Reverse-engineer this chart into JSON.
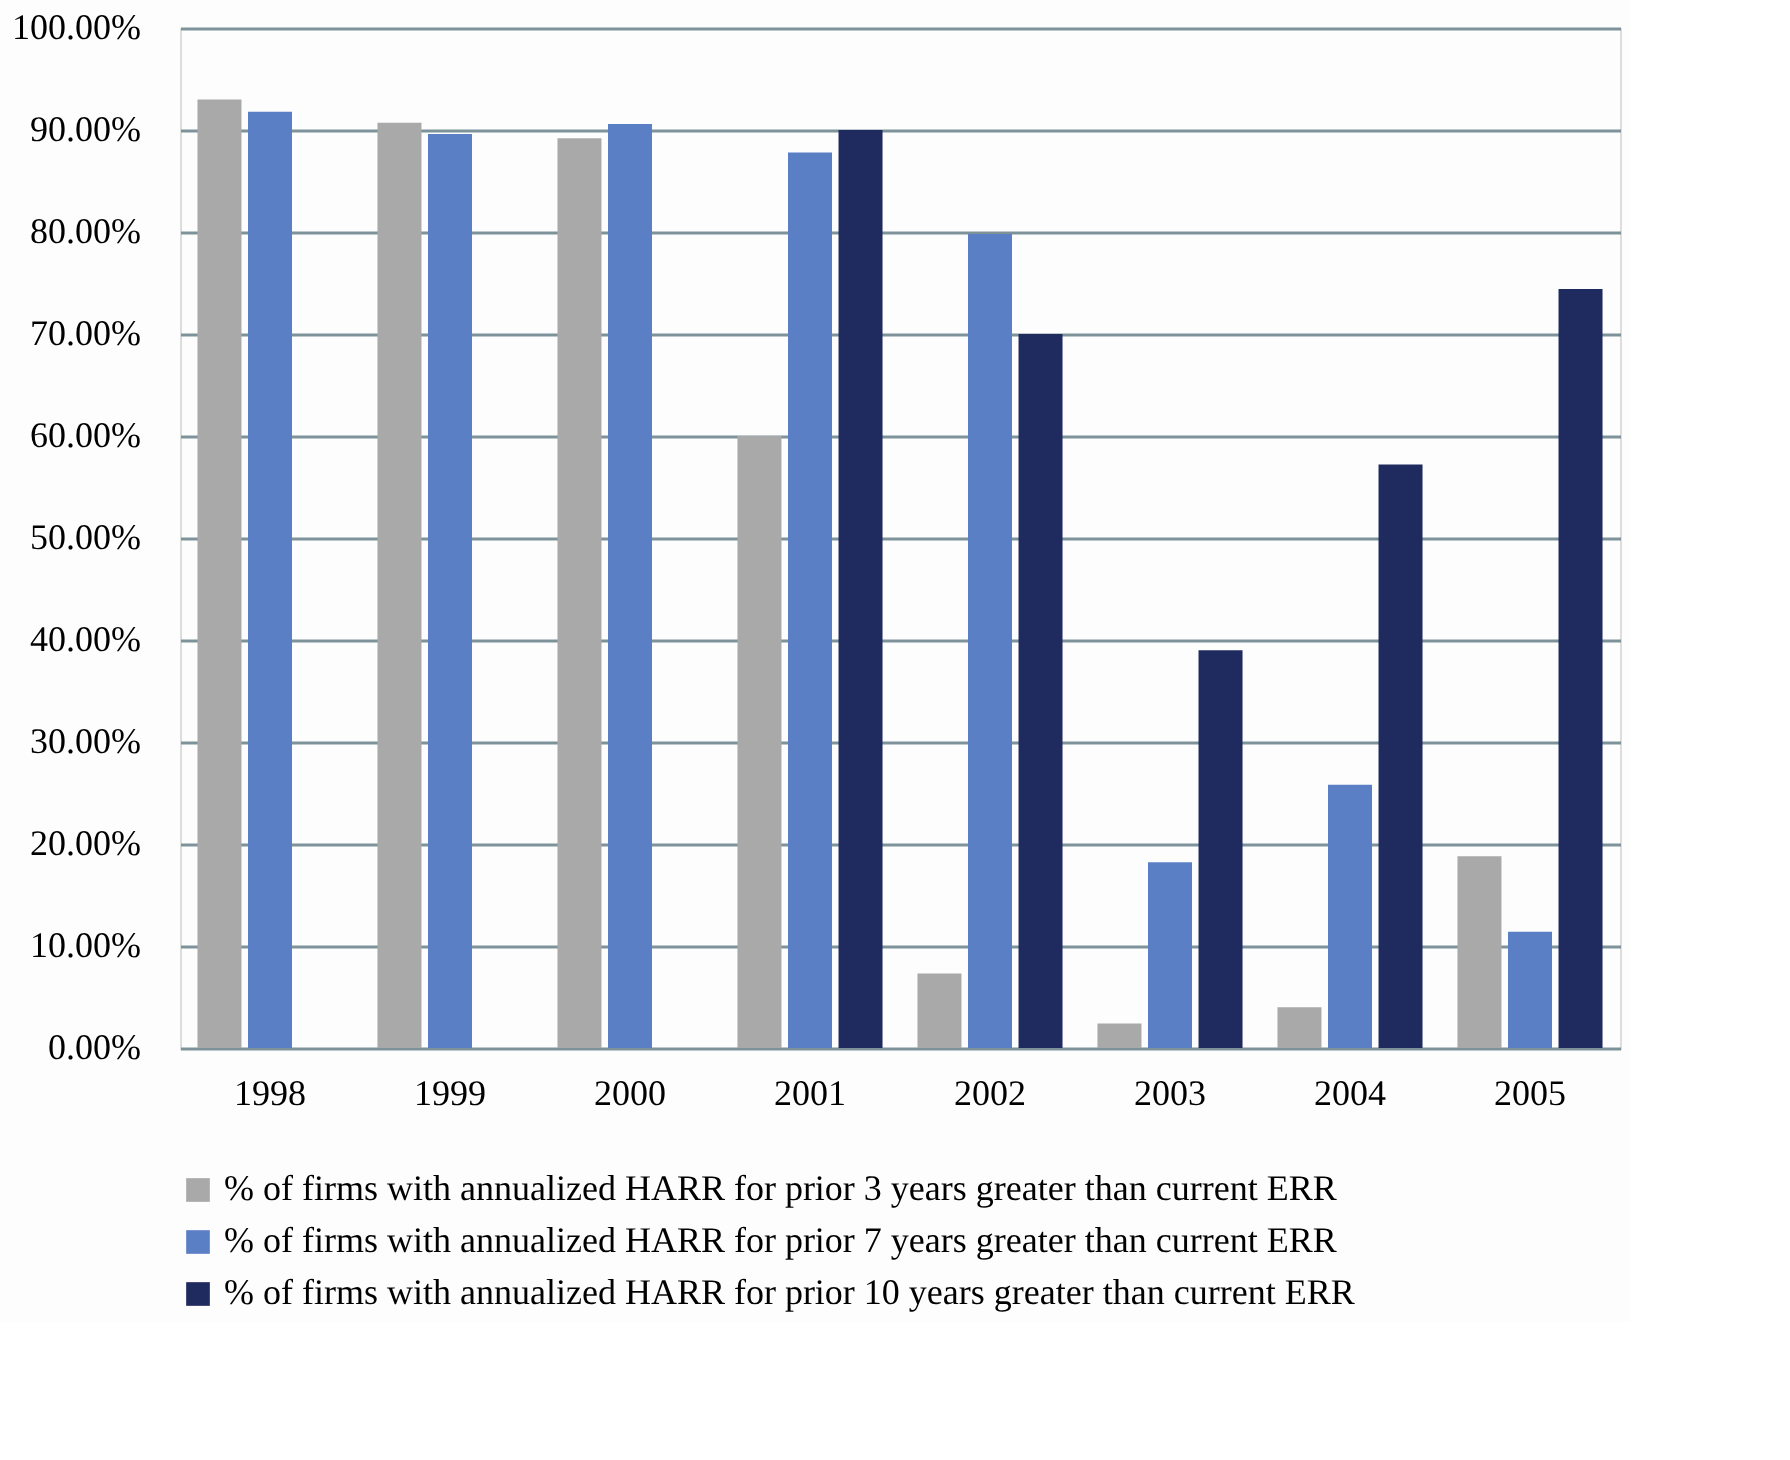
{
  "chart_data": {
    "type": "bar",
    "categories": [
      "1998",
      "1999",
      "2000",
      "2001",
      "2002",
      "2003",
      "2004",
      "2005"
    ],
    "series": [
      {
        "name": "% of firms with annualized  HARR for prior 3 years greater than current ERR",
        "color": "#a9a9a9",
        "values": [
          93.0,
          90.7,
          89.2,
          60.0,
          7.3,
          2.4,
          4.0,
          18.8
        ]
      },
      {
        "name": "% of firms with annualized  HARR for prior 7 years greater than current ERR",
        "color": "#5b7fc4",
        "values": [
          91.8,
          89.6,
          90.6,
          87.8,
          79.8,
          18.2,
          25.8,
          11.4
        ]
      },
      {
        "name": "% of firms with annualized  HARR for prior 10 years greater than current ERR",
        "color": "#1f2a5e",
        "values": [
          null,
          null,
          null,
          90.0,
          70.0,
          39.0,
          57.2,
          74.4
        ]
      }
    ],
    "ylim": [
      0,
      100
    ],
    "yticks": [
      {
        "value": 0,
        "label": "0.00%"
      },
      {
        "value": 10,
        "label": "10.00%"
      },
      {
        "value": 20,
        "label": "20.00%"
      },
      {
        "value": 30,
        "label": "30.00%"
      },
      {
        "value": 40,
        "label": "40.00%"
      },
      {
        "value": 50,
        "label": "50.00%"
      },
      {
        "value": 60,
        "label": "60.00%"
      },
      {
        "value": 70,
        "label": "70.00%"
      },
      {
        "value": 80,
        "label": "80.00%"
      },
      {
        "value": 90,
        "label": "90.00%"
      },
      {
        "value": 100,
        "label": "100.00%"
      }
    ],
    "grid": "y",
    "legend": "bottom"
  }
}
